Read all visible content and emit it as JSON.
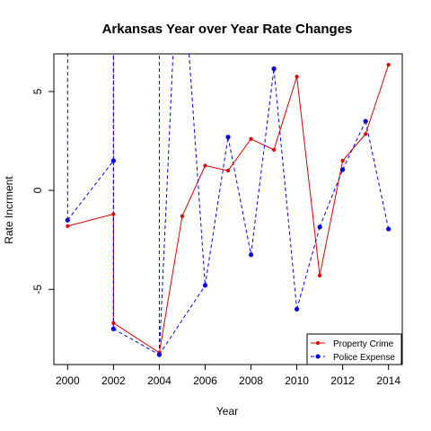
{
  "chart_data": {
    "type": "line",
    "title": "Arkansas Year over Year Rate Changes",
    "xlabel": "Year",
    "ylabel": "Rate Incrment",
    "xlim": [
      1999.4,
      2014.6
    ],
    "ylim": [
      -8.8,
      6.9
    ],
    "xticks": [
      2000,
      2002,
      2004,
      2006,
      2008,
      2010,
      2012,
      2014
    ],
    "xtick_labels": [
      "2000",
      "2002",
      "2004",
      "2006",
      "2008",
      "2010",
      "2012",
      "2014"
    ],
    "yticks": [
      -5,
      0,
      5
    ],
    "ytick_labels": [
      "-5",
      "0",
      "5"
    ],
    "legend_position": "bottom-right",
    "grid": false,
    "series": [
      {
        "name": "Property Crime",
        "color": "#dd0000",
        "line": "solid",
        "x": [
          2000,
          2002,
          2002,
          2004,
          2005,
          2006,
          2007,
          2008,
          2009,
          2010,
          2011,
          2012,
          2013,
          2014
        ],
        "y": [
          -1.8,
          -1.2,
          -6.7,
          -8.2,
          -1.3,
          1.25,
          1.0,
          2.6,
          2.05,
          5.75,
          -4.3,
          1.5,
          2.85,
          6.35
        ]
      },
      {
        "name": "Police Expense",
        "color": "#0000ee",
        "line": "dashed",
        "x": [
          2000,
          2002,
          2002,
          2004,
          2006,
          2007,
          2008,
          2009,
          2010,
          2011,
          2012,
          2013,
          2014
        ],
        "y": [
          -1.5,
          1.5,
          -7.0,
          -8.3,
          -4.8,
          2.7,
          -3.25,
          6.15,
          -6.0,
          -1.85,
          1.05,
          3.5,
          -1.95
        ]
      }
    ],
    "offscale_segments": [
      {
        "series": "Police Expense",
        "x": [
          2000,
          2000
        ],
        "y": [
          -1.5,
          6.9
        ]
      },
      {
        "series": "Police Expense",
        "x": [
          2002,
          2002
        ],
        "y": [
          1.5,
          6.9
        ]
      },
      {
        "series": "Police Expense",
        "x": [
          2002,
          2002
        ],
        "y": [
          -7.0,
          6.9
        ]
      },
      {
        "series": "Police Expense",
        "x": [
          2004,
          2004
        ],
        "y": [
          -8.3,
          6.9
        ]
      },
      {
        "series": "Police Expense",
        "x": [
          2004,
          2004.6
        ],
        "y": [
          -8.3,
          6.9
        ]
      },
      {
        "series": "Police Expense",
        "x": [
          2005.3,
          2006
        ],
        "y": [
          6.9,
          -4.8
        ]
      }
    ]
  }
}
